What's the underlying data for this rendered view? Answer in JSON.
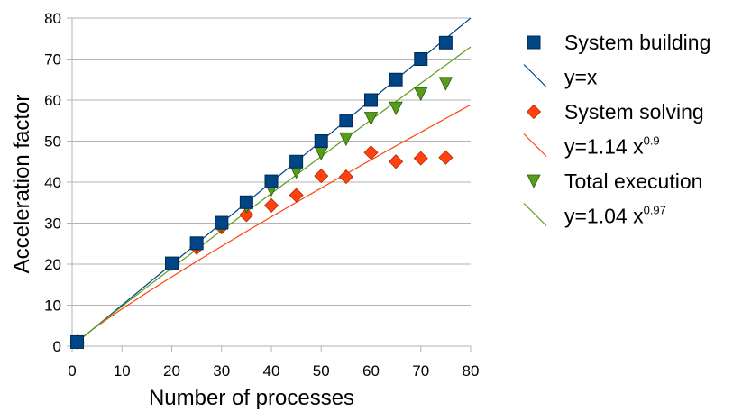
{
  "chart_data": {
    "type": "scatter",
    "xlabel": "Number of processes",
    "ylabel": "Acceleration factor",
    "xlim": [
      0,
      80
    ],
    "ylim": [
      0,
      80
    ],
    "x_ticks": [
      "0",
      "10",
      "20",
      "30",
      "40",
      "50",
      "60",
      "70",
      "80"
    ],
    "y_ticks": [
      "0",
      "10",
      "20",
      "30",
      "40",
      "50",
      "60",
      "70",
      "80"
    ],
    "grid": "horizontal",
    "legend_position": "right",
    "series": [
      {
        "name": "System building",
        "kind": "points",
        "marker": "square",
        "color": "#004586",
        "x": [
          1,
          20,
          25,
          30,
          35,
          40,
          45,
          50,
          55,
          60,
          65,
          70,
          75
        ],
        "y": [
          1,
          20.2,
          25.1,
          30.1,
          35.1,
          40.2,
          45,
          50,
          55,
          60,
          65,
          70,
          74
        ]
      },
      {
        "name": "y=x",
        "kind": "line",
        "color": "#004586",
        "coef": 1,
        "exp": 1
      },
      {
        "name": "System solving",
        "kind": "points",
        "marker": "diamond",
        "color": "#ff420e",
        "x": [
          1,
          25,
          30,
          35,
          40,
          45,
          50,
          55,
          60,
          65,
          70,
          75
        ],
        "y": [
          1,
          24,
          29,
          32,
          34.3,
          36.8,
          41.5,
          41.3,
          47.2,
          45,
          45.8,
          46
        ]
      },
      {
        "name": "y=1.14 x",
        "name_sup": "0.9",
        "kind": "line",
        "color": "#ff420e",
        "coef": 1.14,
        "exp": 0.9
      },
      {
        "name": "Total execution",
        "kind": "points",
        "marker": "triangle-down",
        "color": "#579d1c",
        "x": [
          1,
          20,
          25,
          30,
          35,
          40,
          45,
          50,
          55,
          60,
          65,
          70,
          75
        ],
        "y": [
          1,
          20,
          24.5,
          29.3,
          34,
          38.2,
          42.5,
          47,
          50.5,
          55.5,
          58,
          61.5,
          64
        ]
      },
      {
        "name": "y=1.04 x",
        "name_sup": "0.97",
        "kind": "line",
        "color": "#579d1c",
        "coef": 1.04,
        "exp": 0.97
      }
    ]
  }
}
